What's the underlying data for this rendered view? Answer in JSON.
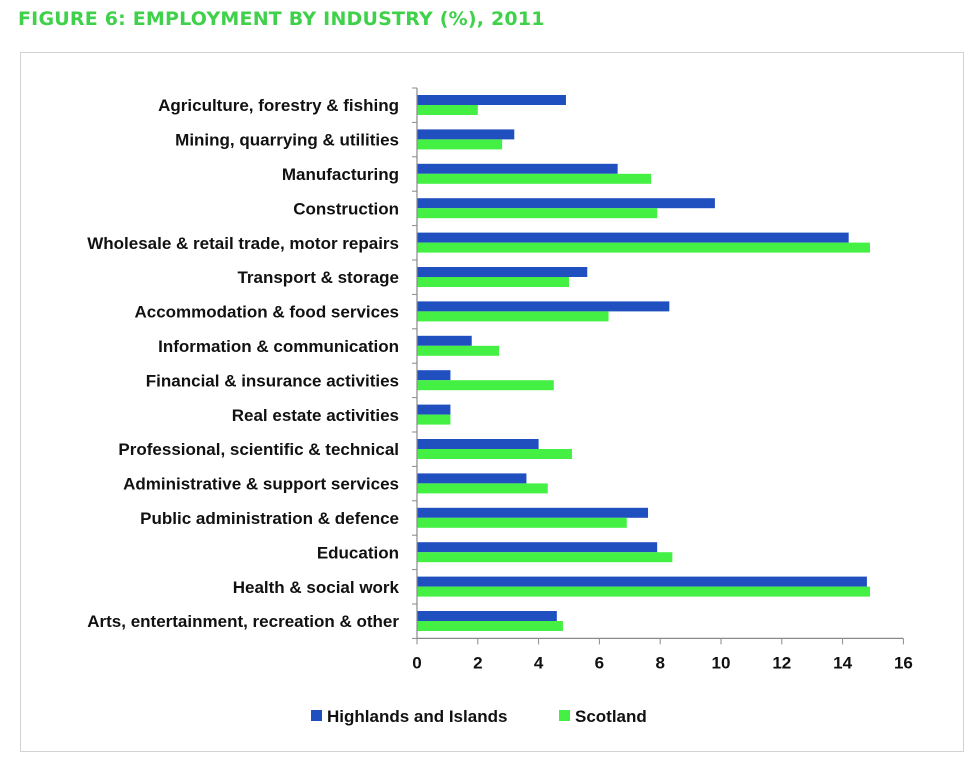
{
  "figure_title": "FIGURE 6: EMPLOYMENT BY INDUSTRY (%), 2011",
  "colors": {
    "title": "#3fd14a",
    "highlands": "#2050c0",
    "scotland": "#43f043"
  },
  "chart_data": {
    "type": "bar",
    "orientation": "horizontal",
    "title": "FIGURE 6: EMPLOYMENT BY INDUSTRY (%), 2011",
    "xlabel": "",
    "ylabel": "",
    "xlim": [
      0,
      16
    ],
    "xticks": [
      "0",
      "2",
      "4",
      "6",
      "8",
      "10",
      "12",
      "14",
      "16"
    ],
    "grid": false,
    "legend_position": "bottom",
    "categories": [
      "Agriculture, forestry & fishing",
      "Mining, quarrying & utilities",
      "Manufacturing",
      "Construction",
      "Wholesale & retail trade, motor repairs",
      "Transport & storage",
      "Accommodation & food services",
      "Information & communication",
      "Financial & insurance activities",
      "Real estate activities",
      "Professional, scientific & technical",
      "Administrative & support services",
      "Public administration & defence",
      "Education",
      "Health & social work",
      "Arts, entertainment, recreation & other"
    ],
    "series": [
      {
        "name": "Highlands and Islands",
        "values": [
          4.9,
          3.2,
          6.6,
          9.8,
          14.2,
          5.6,
          8.3,
          1.8,
          1.1,
          1.1,
          4.0,
          3.6,
          7.6,
          7.9,
          14.8,
          4.6
        ]
      },
      {
        "name": "Scotland",
        "values": [
          2.0,
          2.8,
          7.7,
          7.9,
          14.9,
          5.0,
          6.3,
          2.7,
          4.5,
          1.1,
          5.1,
          4.3,
          6.9,
          8.4,
          14.9,
          4.8
        ]
      }
    ]
  }
}
